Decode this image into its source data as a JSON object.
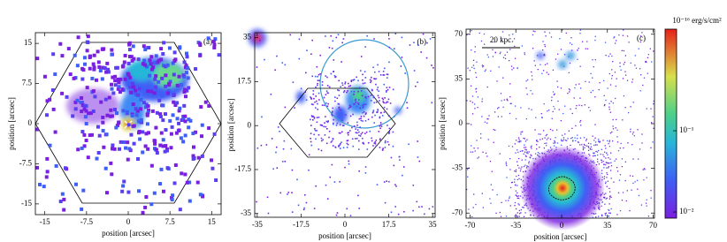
{
  "chart_data": [
    {
      "type": "image",
      "label": "(a)",
      "xlabel": "position [arcsec]",
      "ylabel": "position [arcsec]",
      "xlim": [
        -16.7,
        16.7
      ],
      "ylim": [
        -17,
        17
      ],
      "xticks": [
        -15,
        -7.5,
        0,
        7.5,
        15
      ],
      "yticks": [
        -15,
        -7.5,
        0,
        7.5,
        15
      ]
    },
    {
      "type": "image",
      "label": "(b)",
      "xlabel": "position [arcsec]",
      "ylabel": "position [arcsec]",
      "xlim": [
        -36,
        36
      ],
      "ylim": [
        -36.5,
        37
      ],
      "xticks": [
        -35,
        -17.5,
        0,
        17.5,
        35
      ],
      "yticks": [
        -35,
        -17.5,
        0,
        17.5,
        35
      ]
    },
    {
      "type": "image",
      "label": "(c)",
      "xlabel": "position [arcsec]",
      "ylabel": "position [arcsec]",
      "scale_bar": "20 kpc",
      "xlim": [
        -73,
        71
      ],
      "ylim": [
        -74,
        74
      ],
      "xticks": [
        -70,
        -35,
        0,
        35,
        70
      ],
      "yticks": [
        -70,
        -35,
        0,
        35,
        70
      ]
    },
    {
      "type": "colorbar",
      "title": "10⁻¹⁶ erg/s/cm²",
      "log_scale": true,
      "ylim": [
        0.0084,
        1.78
      ],
      "yticks": [
        {
          "value": 0.1,
          "label": "10⁻¹"
        },
        {
          "value": 0.01,
          "label": "10⁻²"
        }
      ]
    }
  ]
}
